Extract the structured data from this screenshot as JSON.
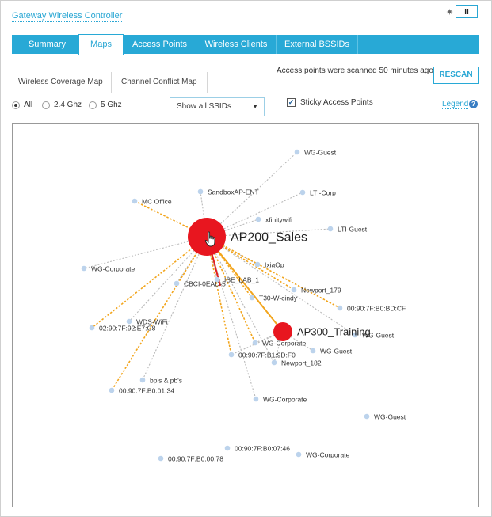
{
  "app": {
    "title": "Gateway Wireless Controller"
  },
  "header": {
    "pause_label": "II",
    "spinner_glyph": "✷"
  },
  "tabs": [
    {
      "label": "Summary",
      "active": false
    },
    {
      "label": "Maps",
      "active": true
    },
    {
      "label": "Access Points",
      "active": false
    },
    {
      "label": "Wireless Clients",
      "active": false
    },
    {
      "label": "External BSSIDs",
      "active": false
    }
  ],
  "scan": {
    "status_text": "Access points were scanned 50 minutes ago",
    "rescan_label": "RESCAN"
  },
  "subtabs": [
    {
      "label": "Wireless Coverage Map",
      "active": false
    },
    {
      "label": "Channel Conflict Map",
      "active": true
    }
  ],
  "filters": {
    "bands": [
      {
        "label": "All",
        "checked": true
      },
      {
        "label": "2.4 Ghz",
        "checked": false
      },
      {
        "label": "5 Ghz",
        "checked": false
      }
    ],
    "ssid_select": {
      "value": "Show all SSIDs"
    },
    "sticky": {
      "label": "Sticky Access Points",
      "checked": true
    },
    "legend_label": "Legend",
    "legend_icon": "?"
  },
  "map": {
    "access_points": [
      {
        "id": "ap200",
        "label": "AP200_Sales",
        "color": "#e8161f"
      },
      {
        "id": "ap300",
        "label": "AP300_Training",
        "color": "#e8161f"
      }
    ],
    "ssid_nodes": [
      {
        "id": "n1",
        "label": "WG-Guest"
      },
      {
        "id": "n2",
        "label": "SandboxAP-ENT"
      },
      {
        "id": "n3",
        "label": "LTI-Corp"
      },
      {
        "id": "n4",
        "label": "MC Office"
      },
      {
        "id": "n5",
        "label": "xfinitywifi"
      },
      {
        "id": "n6",
        "label": "LTI-Guest"
      },
      {
        "id": "n7",
        "label": "IxiaOp"
      },
      {
        "id": "n8",
        "label": "WG-Corporate"
      },
      {
        "id": "n9",
        "label": "CBCI-0EAD-5"
      },
      {
        "id": "n10",
        "label": "ISE_LAB_1"
      },
      {
        "id": "n11",
        "label": "Newport_179"
      },
      {
        "id": "n12",
        "label": "T30-W-cindy"
      },
      {
        "id": "n13",
        "label": "00:90:7F:B0:BD:CF"
      },
      {
        "id": "n14",
        "label": "WDS-WiFi"
      },
      {
        "id": "n15",
        "label": "02:90:7F:92:E7:C8"
      },
      {
        "id": "n16",
        "label": "WG-Guest"
      },
      {
        "id": "n17",
        "label": "WG-Corporate"
      },
      {
        "id": "n18",
        "label": "WG-Guest"
      },
      {
        "id": "n19",
        "label": "00:90:7F:B1:9D:F0"
      },
      {
        "id": "n20",
        "label": "Newport_182"
      },
      {
        "id": "n21",
        "label": "bp's & pb's"
      },
      {
        "id": "n22",
        "label": "00:90:7F:B0:01:34"
      },
      {
        "id": "n23",
        "label": "WG-Corporate"
      },
      {
        "id": "n24",
        "label": "WG-Guest"
      },
      {
        "id": "n25",
        "label": "00:90:7F:B0:07:46"
      },
      {
        "id": "n26",
        "label": "00:90:7F:B0:00:78"
      },
      {
        "id": "n27",
        "label": "WG-Corporate"
      }
    ],
    "colors": {
      "node": "#bcd3ec",
      "grey_link": "#b9b9b9",
      "orange_link": "#f2a51c",
      "conflict_link": "#e02020"
    }
  }
}
